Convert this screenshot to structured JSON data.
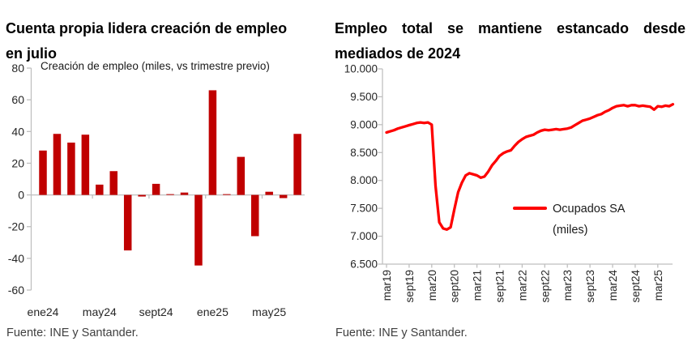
{
  "left_panel": {
    "title_line1": "Cuenta propia lidera creación de empleo",
    "title_line2": "en julio",
    "legend": "Creación de empleo (miles, vs trimestre previo)",
    "source": "Fuente: INE y Santander."
  },
  "right_panel": {
    "title_line1": "Empleo total se mantiene estancado desde",
    "title_line2": "mediados de 2024",
    "legend": "Ocupados SA (miles)",
    "source": "Fuente: INE y Santander."
  },
  "colors": {
    "bar": "#C00000",
    "line": "#FE0000",
    "axis": "#BFBFBF",
    "axis_text": "#262626",
    "title_text": "#000000",
    "source_text": "#3F3F3F"
  },
  "chart_data": [
    {
      "type": "bar",
      "title": "Creación de empleo (miles, vs trimestre previo)",
      "categories": [
        "ene24",
        "feb24",
        "mar24",
        "abr24",
        "may24",
        "jun24",
        "jul24",
        "ago24",
        "sept24",
        "oct24",
        "nov24",
        "dic24",
        "ene25",
        "feb25",
        "mar25",
        "abr25",
        "may25",
        "jun25",
        "jul25"
      ],
      "values": [
        28,
        38.5,
        33,
        38,
        6.5,
        15,
        -35,
        -1,
        7,
        0.5,
        1.5,
        -44.5,
        66,
        0.5,
        24,
        -26,
        2,
        -2,
        38.5
      ],
      "x_tick_labels": [
        "ene24",
        "may24",
        "sept24",
        "ene25",
        "may25"
      ],
      "ytick_labels": [
        "80",
        "60",
        "40",
        "20",
        "0",
        "-20",
        "-40",
        "-60"
      ],
      "ylim": [
        -60,
        80
      ],
      "ytick_step": 20,
      "grid": false,
      "legend_position": "top-left-inside",
      "source": "Fuente: INE y Santander."
    },
    {
      "type": "line",
      "title": "Ocupados SA (miles)",
      "x": [
        "mar19",
        "abr19",
        "may19",
        "jun19",
        "jul19",
        "ago19",
        "sept19",
        "oct19",
        "nov19",
        "dic19",
        "ene20",
        "feb20",
        "mar20",
        "abr20",
        "may20",
        "jun20",
        "jul20",
        "ago20",
        "sept20",
        "oct20",
        "nov20",
        "dic20",
        "ene21",
        "feb21",
        "mar21",
        "abr21",
        "may21",
        "jun21",
        "jul21",
        "ago21",
        "sept21",
        "oct21",
        "nov21",
        "dic21",
        "ene22",
        "feb22",
        "mar22",
        "abr22",
        "may22",
        "jun22",
        "jul22",
        "ago22",
        "sept22",
        "oct22",
        "nov22",
        "dic22",
        "ene23",
        "feb23",
        "mar23",
        "abr23",
        "may23",
        "jun23",
        "jul23",
        "ago23",
        "sept23",
        "oct23",
        "nov23",
        "dic23",
        "ene24",
        "feb24",
        "mar24",
        "abr24",
        "may24",
        "jun24",
        "jul24",
        "ago24",
        "sept24",
        "oct24",
        "nov24",
        "dic24",
        "ene25",
        "feb25",
        "mar25",
        "abr25",
        "may25",
        "jun25",
        "jul25"
      ],
      "series": [
        {
          "name": "Ocupados SA (miles)",
          "values": [
            8860,
            8880,
            8900,
            8930,
            8950,
            8970,
            8990,
            9010,
            9030,
            9040,
            9030,
            9040,
            9000,
            7900,
            7250,
            7140,
            7120,
            7160,
            7480,
            7790,
            7960,
            8090,
            8130,
            8110,
            8090,
            8050,
            8070,
            8160,
            8270,
            8350,
            8440,
            8490,
            8520,
            8540,
            8620,
            8690,
            8740,
            8780,
            8800,
            8820,
            8860,
            8890,
            8910,
            8900,
            8910,
            8920,
            8910,
            8920,
            8930,
            8950,
            8990,
            9030,
            9070,
            9090,
            9110,
            9140,
            9170,
            9190,
            9230,
            9260,
            9300,
            9330,
            9340,
            9350,
            9330,
            9350,
            9350,
            9330,
            9340,
            9330,
            9320,
            9270,
            9330,
            9320,
            9340,
            9330,
            9365
          ]
        }
      ],
      "x_tick_labels": [
        "mar19",
        "sept19",
        "mar20",
        "sept20",
        "mar21",
        "sept21",
        "mar22",
        "sept22",
        "mar23",
        "sept23",
        "mar24",
        "sept24",
        "mar25"
      ],
      "ytick_labels": [
        "6.500",
        "7.000",
        "7.500",
        "8.000",
        "8.500",
        "9.000",
        "9.500",
        "10.000"
      ],
      "ylim": [
        6500,
        10000
      ],
      "ytick_step": 500,
      "grid": false,
      "legend_position": "center-right-inside",
      "source": "Fuente: INE y Santander."
    }
  ]
}
